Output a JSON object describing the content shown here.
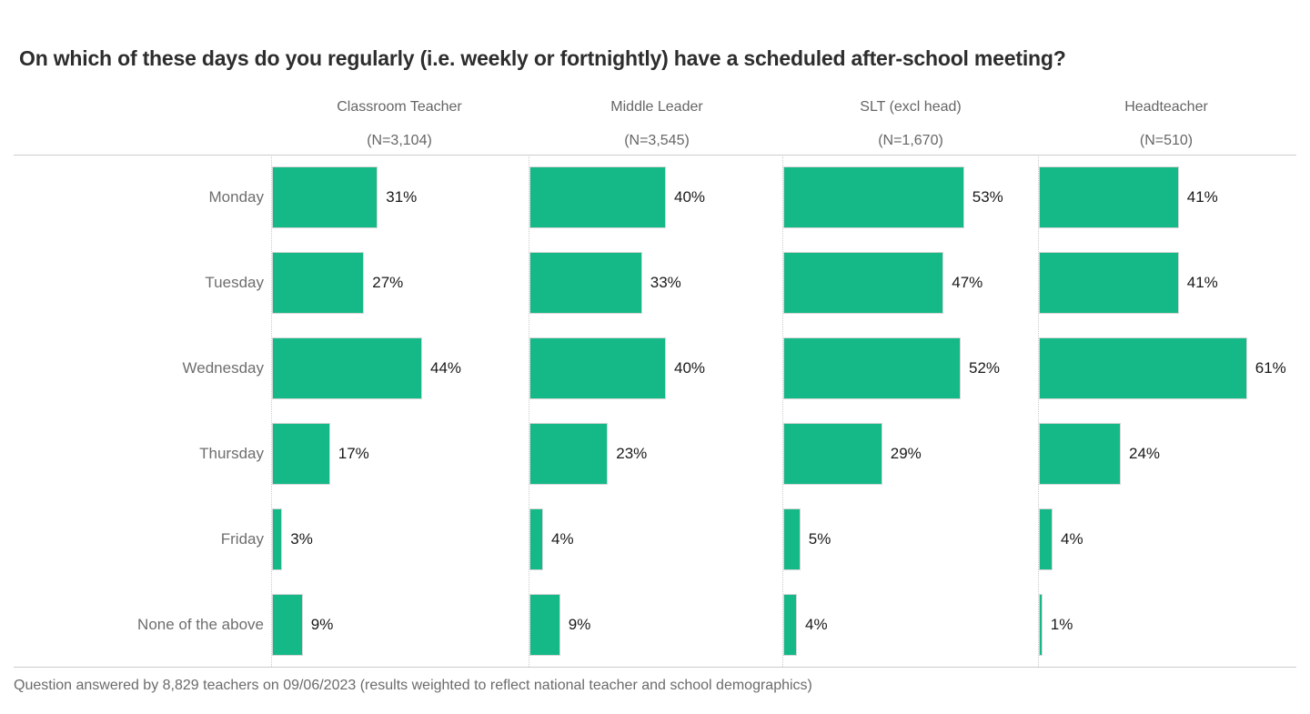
{
  "title": "On which of these days do you regularly (i.e. weekly or fortnightly) have a scheduled after-school meeting?",
  "footer": "Question answered by 8,829 teachers on 09/06/2023 (results weighted to reflect national teacher and school demographics)",
  "colors": {
    "bar": "#14b987",
    "grid_line": "#cccccc",
    "title_text": "#2d2d2d",
    "row_label_text": "#6e6e6e",
    "value_text": "#1a1a1a",
    "column_header_text": "#666666",
    "footer_text": "#6b6b6b"
  },
  "chart_data": {
    "type": "bar",
    "orientation": "horizontal",
    "unit": "%",
    "title": "On which of these days do you regularly (i.e. weekly or fortnightly) have a scheduled after-school meeting?",
    "categories": [
      "Monday",
      "Tuesday",
      "Wednesday",
      "Thursday",
      "Friday",
      "None of the above"
    ],
    "series": [
      {
        "name": "Classroom Teacher",
        "n_label": "(N=3,104)",
        "values": [
          31,
          27,
          44,
          17,
          3,
          9
        ],
        "value_labels": [
          "31%",
          "27%",
          "44%",
          "17%",
          "3%",
          "9%"
        ]
      },
      {
        "name": "Middle Leader",
        "n_label": "(N=3,545)",
        "values": [
          40,
          33,
          40,
          23,
          4,
          9
        ],
        "value_labels": [
          "40%",
          "33%",
          "40%",
          "23%",
          "4%",
          "9%"
        ]
      },
      {
        "name": "SLT (excl head)",
        "n_label": "(N=1,670)",
        "values": [
          53,
          47,
          52,
          29,
          5,
          4
        ],
        "value_labels": [
          "53%",
          "47%",
          "52%",
          "29%",
          "5%",
          "4%"
        ]
      },
      {
        "name": "Headteacher",
        "n_label": "(N=510)",
        "values": [
          41,
          41,
          61,
          24,
          4,
          1
        ],
        "value_labels": [
          "41%",
          "41%",
          "61%",
          "24%",
          "4%",
          "1%"
        ]
      }
    ],
    "xlim": [
      0,
      75
    ],
    "grid": "dotted-column-axes",
    "legend": "none",
    "footnote": "Question answered by 8,829 teachers on 09/06/2023 (results weighted to reflect national teacher and school demographics)"
  }
}
